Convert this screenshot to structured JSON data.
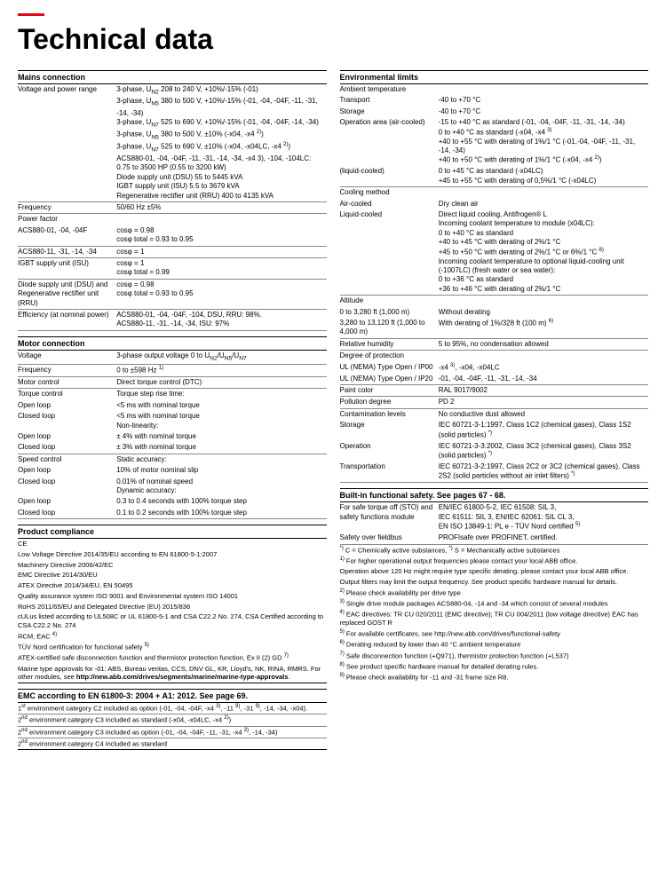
{
  "title": "Technical data",
  "left": {
    "s1": {
      "title": "Mains connection",
      "rows": [
        {
          "l": "Voltage and power range",
          "v": [
            "3-phase, U<sub>N2</sub> 208 to 240 V, +10%/-15% (-01)",
            "3-phase, U<sub>N5</sub> 380 to 500 V, +10%/-15% (-01, -04, -04F, -11, -31, -14, -34)",
            "3-phase, U<sub>N7</sub> 525 to 690 V, +10%/-15% (-01, -04, -04F, -14, -34)",
            "3-phase, U<sub>N5</sub> 380 to 500 V, ±10% (-x04, -x4 <sup>2)</sup>)",
            "3-phase, U<sub>N7</sub> 525 to 690 V, ±10% (-x04, -x04LC, -x4 <sup>2)</sup>)",
            "ACS880-01, -04, -04F, -11, -31, -14, -34, -x4 3), -104, -104LC: 0.75 to 3500 HP (0.55 to 3200 kW)",
            "Diode supply unit (DSU) 55 to 5445 kVA",
            "IGBT supply unit (ISU) 5.5 to 3679 kVA",
            "Regenerative rectifier unit (RRU) 400 to 4135 kVA"
          ]
        },
        {
          "l": "Frequency",
          "v": [
            "50/60 Hz ±5%"
          ]
        },
        {
          "l": "Power factor",
          "v": [
            ""
          ],
          "nb": true
        },
        {
          "l": "ACS880-01, -04, -04F",
          "v": [
            "cosφ = 0.98",
            "cosφ total = 0.93 to 0.95"
          ]
        },
        {
          "l": "ACS880-11, -31, -14, -34",
          "v": [
            "cosφ = 1"
          ]
        },
        {
          "l": "IGBT supply unit (ISU)",
          "v": [
            "cosφ = 1",
            "cosφ total = 0.99"
          ]
        },
        {
          "l": "Diode supply unit (DSU) and Regenerative rectifier unit (RRU)",
          "v": [
            "cosφ = 0.98",
            "cosφ total = 0.93 to 0.95"
          ]
        },
        {
          "l": "Efficiency (at nominal power)",
          "v": [
            "ACS880-01, -04, -04F, -104, DSU, RRU: 98%.",
            "ACS880-11, -31, -14, -34, ISU: 97%"
          ]
        }
      ]
    },
    "s2": {
      "title": "Motor connection",
      "rows": [
        {
          "l": "Voltage",
          "v": [
            "3-phase output voltage 0 to U<sub>N2</sub>/U<sub>N5</sub>/U<sub>N7</sub>"
          ]
        },
        {
          "l": "Frequency",
          "v": [
            "0 to ±598 Hz <sup>1)</sup>"
          ]
        },
        {
          "l": "Motor control",
          "v": [
            "Direct torque control (DTC)"
          ]
        },
        {
          "l": "Torque control",
          "v": [
            "Torque step rise time:"
          ],
          "nb": true
        },
        {
          "l": "Open loop",
          "v": [
            "<5 ms with nominal torque"
          ],
          "nb": true
        },
        {
          "l": "Closed loop",
          "v": [
            "<5 ms with nominal torque",
            "Non-linearity:"
          ],
          "nb": true
        },
        {
          "l": "Open loop",
          "v": [
            "± 4% with nominal torque"
          ],
          "nb": true
        },
        {
          "l": "Closed loop",
          "v": [
            "± 3% with nominal torque"
          ]
        },
        {
          "l": "Speed control",
          "v": [
            "Static accuracy:"
          ],
          "nb": true
        },
        {
          "l": "Open loop",
          "v": [
            "10% of motor nominal slip"
          ],
          "nb": true
        },
        {
          "l": "Closed loop",
          "v": [
            "0.01% of nominal speed",
            "Dynamic accuracy:"
          ],
          "nb": true
        },
        {
          "l": "Open loop",
          "v": [
            "0.3 to 0.4 seconds with 100% torque step"
          ],
          "nb": true
        },
        {
          "l": "Closed loop",
          "v": [
            "0.1 to 0.2 seconds with 100% torque step"
          ]
        }
      ]
    },
    "s3": {
      "title": "Product compliance",
      "lines": [
        "CE",
        "Low Voltage Directive 2014/35/EU according to EN 61800-5-1:2007",
        "Machinery Directive 2006/42/EC",
        "EMC Directive 2014/30/EU",
        "ATEX Directive 2014/34/EU, EN 50495",
        "Quality assurance system ISO 9001 and Environmental system ISO 14001",
        "RoHS 2011/65/EU and Delegated Directive (EU) 2015/836",
        "cULus listed according to UL508C or UL 61800-5-1 and CSA C22.2 No. 274, CSA Certified according to CSA C22.2 No. 274",
        "RCM, EAC <sup>4)</sup>",
        "TÜV Nord certification for functional safety <sup>5)</sup>",
        "ATEX-certified safe disconnection function and thermistor protection function, Ex II (2) GD <sup>7)</sup>",
        "Marine type approvals for -01: ABS, Bureau veritas, CCS, DNV GL, KR, Lloyd's, NK, RINA, RMRS. For other modules, see <b>http://new.abb.com/drives/segments/marine/marine-type-approvals</b>."
      ]
    },
    "s4": {
      "title": "EMC according to EN 61800-3: 2004 + A1: 2012. See page 69.",
      "lines": [
        "1<sup>st</sup> environment category C2 included as option (-01, -04, -04F, -x4 <sup>3)</sup>, -11 <sup>9)</sup>, -31 <sup>9)</sup>, -14, -34, -x04).",
        "2<sup>nd</sup> environment category C3 included as standard (-x04, -x04LC, -x4 <sup>2)</sup>)",
        "2<sup>nd</sup> environment category C3 included as option (-01, -04, -04F, -11, -31, -x4 <sup>3)</sup>, -14, -34)",
        "2<sup>nd</sup> environment category C4 included as standard"
      ]
    }
  },
  "right": {
    "s1": {
      "title": "Environmental limits",
      "rows": [
        {
          "l": "Ambient temperature",
          "v": [
            ""
          ],
          "nb": true
        },
        {
          "l": "Transport",
          "v": [
            "-40 to +70 °C"
          ],
          "nb": true
        },
        {
          "l": "Storage",
          "v": [
            "-40 to +70 °C"
          ],
          "nb": true
        },
        {
          "l": "Operation area (air-cooled)",
          "v": [
            "-15 to +40 °C as standard (-01, -04, -04F, -11, -31, -14, -34)",
            "0 to +40 °C as standard (-x04, -x4 <sup>3)</sup>",
            "+40 to +55 °C with derating of 1%/1 °C (-01,-04, -04F, -11, -31, -14, -34)",
            "+40 to +50 °C with derating of 1%/1 °C (-x04, -x4 <sup>2)</sup>)"
          ],
          "nb": true
        },
        {
          "l": "(liquid-cooled)",
          "v": [
            "0 to +45 °C as standard (-x04LC)",
            "+45 to +55 °C with derating of 0,5%/1 °C (-x04LC)"
          ]
        },
        {
          "l": "Cooling method",
          "v": [
            ""
          ],
          "nb": true
        },
        {
          "l": "Air-cooled",
          "v": [
            "Dry clean air"
          ],
          "nb": true
        },
        {
          "l": "Liquid-cooled",
          "v": [
            "Direct liquid cooling, Antifrogen® L",
            "Incoming coolant temperature to module (x04LC):",
            "0 to +40 °C as standard",
            "+40 to +45 °C with derating of 2%/1 °C",
            "+45 to +50 °C with derating of 2%/1 °C or 6%/1 °C <sup>8)</sup>",
            "Incoming coolant temperature to optional liquid-cooling unit (-1007LC) (fresh water or sea water):",
            "0 to +36 °C as standard",
            "+36 to +46 °C with derating of 2%/1 °C"
          ]
        },
        {
          "l": "Altitude",
          "v": [
            ""
          ],
          "nb": true
        },
        {
          "l": "0 to 3,280 ft (1,000 m)",
          "v": [
            "Without derating"
          ],
          "nb": true
        },
        {
          "l": "3,280 to 13,120 ft (1,000 to 4,000 m)",
          "v": [
            "With derating of 1%/328 ft (100 m) <sup>6)</sup>"
          ]
        },
        {
          "l": "Relative humidity",
          "v": [
            "5 to 95%, no condensation allowed"
          ]
        },
        {
          "l": "Degree of protection",
          "v": [
            ""
          ],
          "nb": true
        },
        {
          "l": "UL (NEMA) Type Open / IP00",
          "v": [
            "-x4 <sup>3)</sup>, -x04, -x04LC"
          ],
          "nb": true
        },
        {
          "l": "UL (NEMA) Type Open / IP20",
          "v": [
            "-01, -04, -04F, -11, -31, -14, -34"
          ]
        },
        {
          "l": "Paint color",
          "v": [
            "RAL 9017/9002"
          ]
        },
        {
          "l": "Pollution degree",
          "v": [
            "PD 2"
          ]
        },
        {
          "l": "Contamination levels",
          "v": [
            "No conductive dust allowed"
          ],
          "nb": true
        },
        {
          "l": "Storage",
          "v": [
            "IEC 60721-3-1:1997, Class 1C2 (chemical gases), Class 1S2 (solid particles) <sup>*)</sup>"
          ],
          "nb": true
        },
        {
          "l": "Operation",
          "v": [
            "IEC 60721-3-3:2002, Class 3C2 (chemical gases), Class 3S2 (solid particles) <sup>*)</sup>"
          ],
          "nb": true
        },
        {
          "l": "Transportation",
          "v": [
            "IEC 60721-3-2:1997, Class 2C2 or 3C2 (chemical gases), Class 2S2 (solid particles without air inlet filters) <sup>*)</sup>"
          ]
        }
      ]
    },
    "s2": {
      "title": "Built-in functional safety. See pages 67 - 68.",
      "rows": [
        {
          "l": "For safe torque off (STO) and safety functions module",
          "v": [
            "EN/IEC 61800-5-2, IEC 61508: SIL 3,",
            "IEC 61511: SIL 3, EN/IEC 62061: SIL CL 3,",
            "EN ISO 13849-1: PL e - TÜV Nord certified <sup>5)</sup>"
          ],
          "nb": true
        },
        {
          "l": "Safety over fieldbus",
          "v": [
            "PROFIsafe over PROFINET, certified."
          ]
        }
      ]
    },
    "footnotes": [
      "<sup>*)</sup> C = Chemically active substances, <sup>*)</sup> S = Mechanically active substances",
      "<sup>1)</sup> For higher operational output frequencies please contact your local ABB office.",
      "Operation above 120 Hz might require type specific derating, please contact your local ABB office.",
      "Output filters may limit the output frequency. See product specific hardware manual for details.",
      "<sup>2)</sup> Please check availability per drive type",
      "<sup>3)</sup> Single drive module packages ACS880-04, -14 and -34 which consist of several modules",
      "<sup>4)</sup> EAC directives: TR CU 020/2011 (EMC directive); TR CU 004/2011 (low voltage directive) EAC has replaced GOST R",
      "<sup>5)</sup> For available certificates, see http://new.abb.com/drives/functional-safety",
      "<sup>6)</sup> Derating reduced by lower than 40 °C ambient temperature",
      "<sup>7)</sup> Safe disconnection function (+Q971), thermistor protection function (+L537)",
      "<sup>8)</sup> See product specific hardware manual for detailed derating rules.",
      "<sup>9)</sup> Please check availability for -11 and -31 frame size R8."
    ]
  }
}
